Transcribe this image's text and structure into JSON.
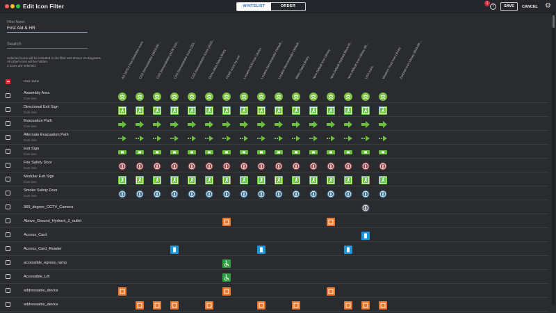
{
  "window": {
    "title": "Edit Icon Filter"
  },
  "segmented": {
    "whitelist": "WHITELIST",
    "order": "ORDER"
  },
  "toolbar": {
    "badge_count": "1",
    "help": "?",
    "save": "SAVE",
    "cancel": "CANCEL",
    "settings_icon": "gear-icon"
  },
  "filter": {
    "label": "Filter Name",
    "value": "First Aid & HR"
  },
  "search": {
    "placeholder": "Search"
  },
  "info": {
    "line1": "Selected icons will be included in the filter and shown on diagrams.",
    "line2": "All other icons will be hidden.",
    "line3": "2 icons are selected."
  },
  "table": {
    "icon_name_header": "Icon name",
    "columns": [
      "AS 1670.1 Fire Detection Icons",
      "CSS Demonstrator (2019-06-...",
      "CSS Demonstrator (ACM Icon...",
      "CSS Demonstrator Icons (201...",
      "CSS Demonstrator Icons (2020...",
      "Demo Altus Data Library",
      "FEMS icons by one",
      "Locatrix ACM Icon Library",
      "Locatrix Demonstrator Default...",
      "Locatrix Demonstrator Default...",
      "Metro Data Library",
      "New Default Icon Library",
      "New Default Hydrant Block Pl...",
      "New Default Icon Library (fil...",
      "USA Icons",
      "Western Trust Icon Library",
      "Zurinnet Icon Library 2019-09-..."
    ],
    "rows": [
      {
        "name": "Assembly Area",
        "sub": "Core icon",
        "icon": "assembly-area-icon",
        "color": "#7cc242",
        "cols": [
          0,
          1,
          2,
          3,
          4,
          5,
          6,
          7,
          8,
          9,
          10,
          11,
          12,
          13,
          14,
          15
        ]
      },
      {
        "name": "Directional Exit Sign",
        "sub": "Core icon",
        "icon": "running-man-exit-icon",
        "color": "#6cbf3e",
        "cols": [
          0,
          1,
          2,
          3,
          4,
          5,
          6,
          7,
          8,
          9,
          10,
          11,
          12,
          13,
          14,
          15
        ]
      },
      {
        "name": "Evacuation Path",
        "sub": "Core icon",
        "icon": "arrow-right-icon",
        "color": "#6cbf3e",
        "cols": [
          0,
          1,
          2,
          3,
          4,
          5,
          6,
          7,
          8,
          9,
          10,
          11,
          12,
          13,
          14,
          15
        ]
      },
      {
        "name": "Alternate Evacuation Path",
        "sub": "Core icon",
        "icon": "dashed-arrow-right-icon",
        "color": "#6cbf3e",
        "cols": [
          0,
          1,
          2,
          3,
          4,
          5,
          6,
          7,
          8,
          9,
          10,
          11,
          12,
          13,
          14,
          15
        ]
      },
      {
        "name": "Exit Sign",
        "sub": "Core icon",
        "icon": "exit-sign-icon",
        "color": "#6cbf3e",
        "cols": [
          0,
          1,
          2,
          3,
          4,
          5,
          6,
          7,
          8,
          9,
          10,
          11,
          12,
          13,
          14,
          15
        ]
      },
      {
        "name": "Fire Safety Door",
        "sub": "Core icon",
        "icon": "fire-door-icon",
        "color": "#e85a5a",
        "cols": [
          0,
          1,
          2,
          3,
          4,
          5,
          6,
          7,
          8,
          9,
          10,
          11,
          12,
          13,
          14,
          15
        ]
      },
      {
        "name": "Modular Exit Sign",
        "sub": "Core icon",
        "icon": "modular-exit-sign-icon",
        "color": "#6cbf3e",
        "cols": [
          0,
          1,
          2,
          3,
          4,
          5,
          6,
          7,
          8,
          9,
          10,
          11,
          12,
          13,
          14,
          15
        ]
      },
      {
        "name": "Smoke Safety Door",
        "sub": "Core icon",
        "icon": "smoke-door-icon",
        "color": "#4aa8dc",
        "cols": [
          0,
          1,
          2,
          3,
          4,
          5,
          6,
          7,
          8,
          9,
          10,
          11,
          12,
          13,
          14,
          15
        ]
      },
      {
        "name": "360_degree_CCTV_Camera",
        "sub": "",
        "icon": "cctv-camera-icon",
        "color": "#8f93a8",
        "cols": [
          14
        ]
      },
      {
        "name": "Above_Ground_Hydrant_2_outlet",
        "sub": "",
        "icon": "hydrant-icon",
        "color": "#e8762c",
        "cols": [
          6,
          12
        ]
      },
      {
        "name": "Access_Card",
        "sub": "",
        "icon": "access-card-icon",
        "color": "#1e95d4",
        "cols": [
          14
        ]
      },
      {
        "name": "Access_Card_Reader",
        "sub": "",
        "icon": "card-reader-icon",
        "color": "#1e95d4",
        "cols": [
          3,
          8,
          13
        ]
      },
      {
        "name": "accessible_egress_ramp",
        "sub": "",
        "icon": "wheelchair-icon",
        "color": "#2e9e3e",
        "cols": [
          6
        ]
      },
      {
        "name": "Accessible_Lift",
        "sub": "",
        "icon": "accessible-lift-icon",
        "color": "#2e9e3e",
        "cols": [
          6
        ]
      },
      {
        "name": "addressable_device",
        "sub": "",
        "icon": "addressable-device-icon",
        "color": "#e8762c",
        "cols": [
          0,
          6,
          12
        ]
      },
      {
        "name": "addressable_device",
        "sub": "",
        "icon": "addressable-device-icon",
        "color": "#e8762c",
        "cols": [
          1,
          2,
          3,
          5,
          8,
          10,
          13,
          14,
          15
        ]
      }
    ]
  }
}
